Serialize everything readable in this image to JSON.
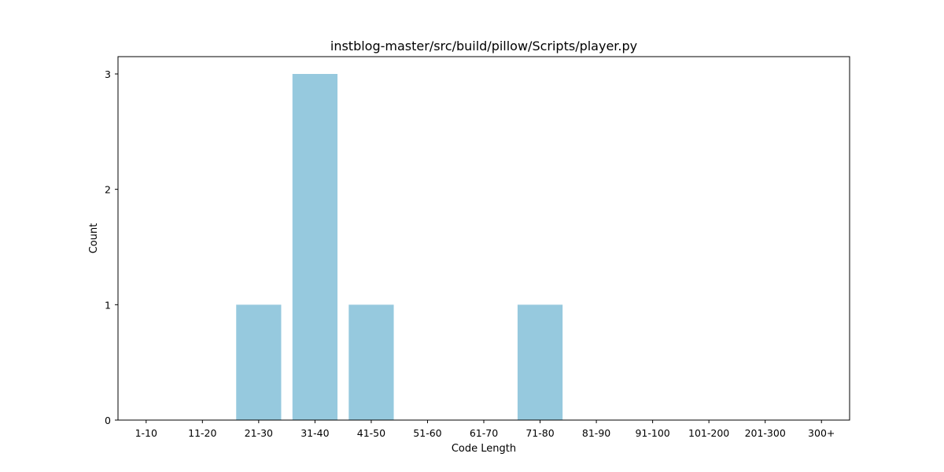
{
  "chart_data": {
    "type": "bar",
    "title": "instblog-master/src/build/pillow/Scripts/player.py",
    "xlabel": "Code Length",
    "ylabel": "Count",
    "categories": [
      "1-10",
      "11-20",
      "21-30",
      "31-40",
      "41-50",
      "51-60",
      "61-70",
      "71-80",
      "81-90",
      "91-100",
      "101-200",
      "201-300",
      "300+"
    ],
    "values": [
      0,
      0,
      1,
      3,
      1,
      0,
      0,
      1,
      0,
      0,
      0,
      0,
      0
    ],
    "yticks": [
      0,
      1,
      2,
      3
    ],
    "ylim": [
      0,
      3.15
    ],
    "grid": false,
    "bar_color": "#96c9de"
  }
}
